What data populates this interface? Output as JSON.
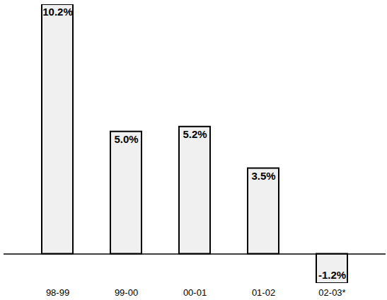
{
  "chart_data": {
    "type": "bar",
    "categories": [
      "98-99",
      "99-00",
      "00-01",
      "01-02",
      "02-03*"
    ],
    "values": [
      10.2,
      5.0,
      5.2,
      3.5,
      -1.2
    ],
    "value_labels": [
      "10.2%",
      "5.0%",
      "5.2%",
      "3.5%",
      "-1.2%"
    ],
    "data_labels": true,
    "tick_labels": "x",
    "ylim": [
      -1.2,
      10.2
    ],
    "color": "#f0f0f0",
    "grid": false
  }
}
